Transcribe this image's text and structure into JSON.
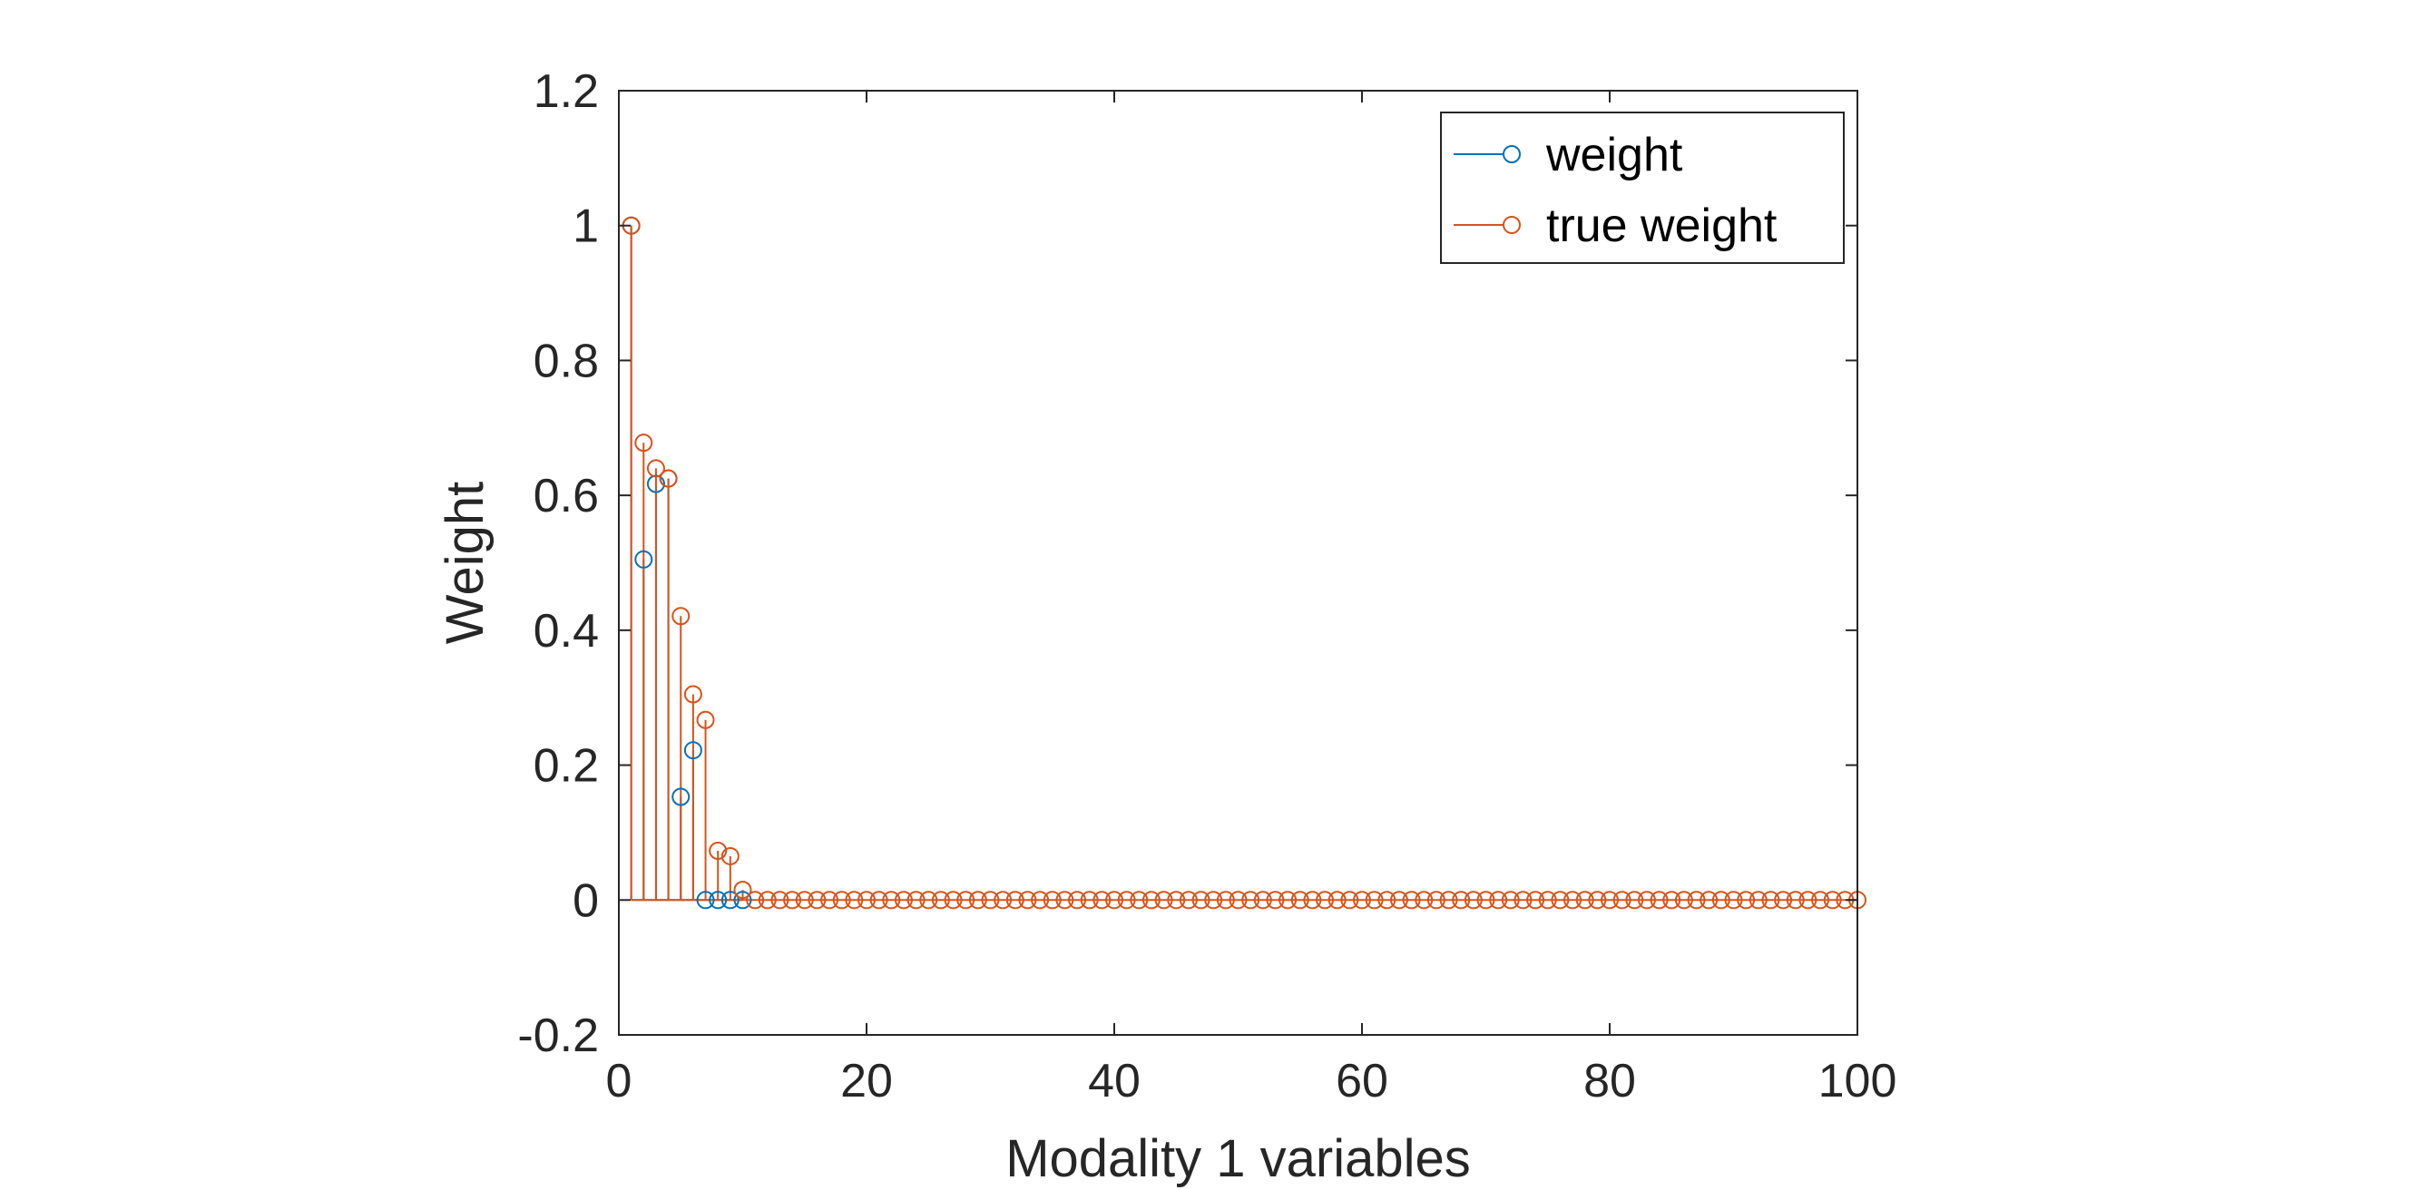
{
  "chart_data": {
    "type": "stem",
    "title": "",
    "xlabel": "Modality 1 variables",
    "ylabel": "Weight",
    "xlim": [
      0,
      100
    ],
    "ylim": [
      -0.2,
      1.2
    ],
    "xticks": [
      0,
      20,
      40,
      60,
      80,
      100
    ],
    "yticks": [
      -0.2,
      0,
      0.2,
      0.4,
      0.6,
      0.8,
      1,
      1.2
    ],
    "grid": false,
    "legend_position": "top-right",
    "series": [
      {
        "name": "weight",
        "color": "#0072BD",
        "points": [
          [
            1,
            1
          ],
          [
            2,
            0.505
          ],
          [
            3,
            0.617
          ],
          [
            4,
            0.625
          ],
          [
            5,
            0.153
          ],
          [
            6,
            0.222
          ],
          [
            7,
            0
          ],
          [
            8,
            0
          ],
          [
            9,
            0
          ],
          [
            10,
            0
          ]
        ]
      },
      {
        "name": "true weight",
        "color": "#D95319",
        "points": [
          [
            1,
            1
          ],
          [
            2,
            0.678
          ],
          [
            3,
            0.64
          ],
          [
            4,
            0.625
          ],
          [
            5,
            0.421
          ],
          [
            6,
            0.305
          ],
          [
            7,
            0.267
          ],
          [
            8,
            0.073
          ],
          [
            9,
            0.065
          ],
          [
            10,
            0.015
          ]
        ],
        "rest_value": 0,
        "rest_from": 11,
        "rest_to": 100
      }
    ]
  }
}
